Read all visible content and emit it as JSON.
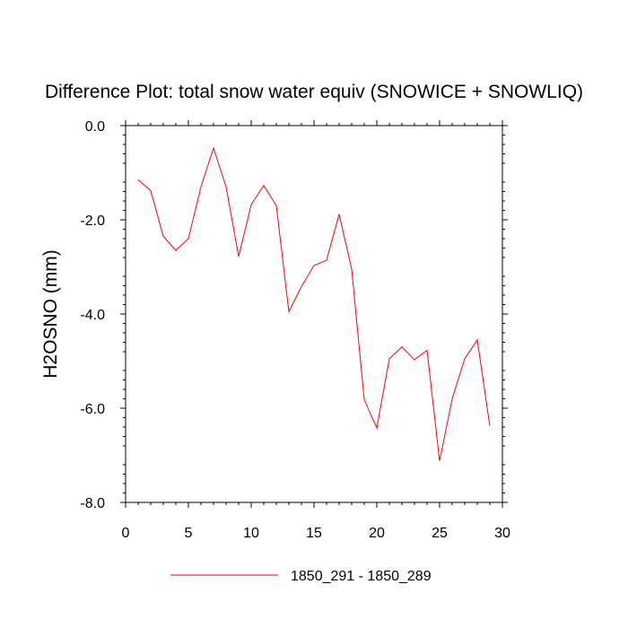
{
  "chart_data": {
    "type": "line",
    "title": "Difference Plot: total snow water equiv (SNOWICE + SNOWLIQ)",
    "xlabel": "",
    "ylabel": "H2OSNO  (mm)",
    "xlim": [
      0,
      30
    ],
    "ylim": [
      -8,
      0
    ],
    "grid": false,
    "legend_position": "bottom-center",
    "x_ticks": [
      0,
      5,
      10,
      15,
      20,
      25,
      30
    ],
    "x_tick_labels": [
      "0",
      "5",
      "10",
      "15",
      "20",
      "25",
      "30"
    ],
    "y_ticks": [
      0,
      -2,
      -4,
      -6,
      -8
    ],
    "y_tick_labels": [
      "0.0",
      "-2.0",
      "-4.0",
      "-6.0",
      "-8.0"
    ],
    "series": [
      {
        "name": "1850_291 - 1850_289",
        "color": "#ff0000",
        "x": [
          1,
          2,
          3,
          4,
          5,
          6,
          7,
          8,
          9,
          10,
          11,
          12,
          13,
          14,
          15,
          16,
          17,
          18,
          19,
          20,
          21,
          22,
          23,
          24,
          25,
          26,
          27,
          28,
          29
        ],
        "values": [
          -1.15,
          -1.38,
          -2.35,
          -2.65,
          -2.4,
          -1.3,
          -0.48,
          -1.3,
          -2.78,
          -1.68,
          -1.27,
          -1.7,
          -3.95,
          -3.42,
          -2.97,
          -2.86,
          -1.88,
          -3.05,
          -5.82,
          -6.42,
          -4.95,
          -4.7,
          -4.97,
          -4.77,
          -7.12,
          -5.8,
          -4.95,
          -4.55,
          -6.38
        ]
      }
    ]
  }
}
